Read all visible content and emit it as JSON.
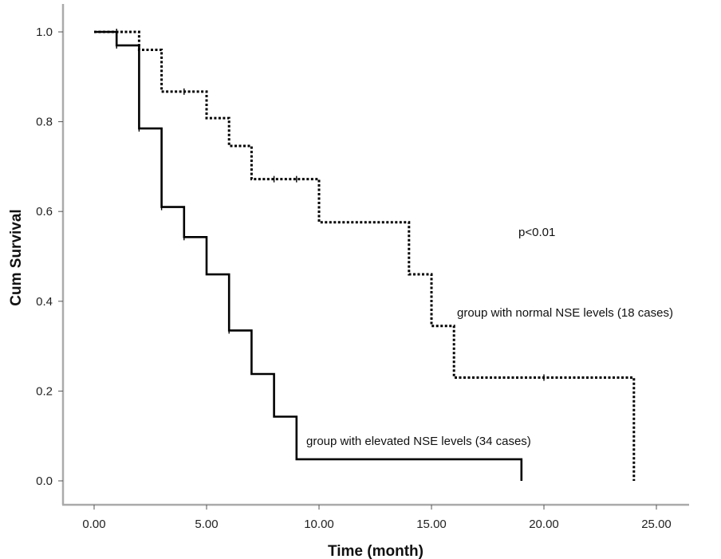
{
  "chart_data": {
    "type": "line",
    "subtype": "kaplan-meier-step",
    "title": "",
    "xlabel": "Time (month)",
    "ylabel": "Cum Survival",
    "xlim": [
      0,
      25
    ],
    "ylim": [
      0,
      1
    ],
    "x_ticks": [
      "0.00",
      "5.00",
      "10.00",
      "15.00",
      "20.00",
      "25.00"
    ],
    "y_ticks": [
      "0.0",
      "0.2",
      "0.4",
      "0.6",
      "0.8",
      "1.0"
    ],
    "grid": false,
    "annotations": [
      {
        "text": "p<0.01",
        "x": 19.5,
        "y": 0.55
      },
      {
        "text": "group with normal NSE levels (18 cases)",
        "x": 16.1,
        "y": 0.37
      },
      {
        "text": "group with elevated NSE levels (34 cases)",
        "x": 9.5,
        "y": 0.085
      }
    ],
    "series": [
      {
        "style": "dotted",
        "color": "#000000",
        "steps": [
          [
            0,
            1.0
          ],
          [
            2,
            0.96
          ],
          [
            3,
            0.867
          ],
          [
            5,
            0.808
          ],
          [
            6,
            0.746
          ],
          [
            7,
            0.672
          ],
          [
            10,
            0.576
          ],
          [
            14,
            0.46
          ],
          [
            15,
            0.345
          ],
          [
            16,
            0.23
          ],
          [
            24,
            0.0
          ]
        ],
        "censored": [
          [
            1,
            1.0
          ],
          [
            2,
            0.96
          ],
          [
            4,
            0.867
          ],
          [
            8,
            0.672
          ],
          [
            9,
            0.672
          ],
          [
            20,
            0.23
          ]
        ]
      },
      {
        "style": "solid",
        "color": "#000000",
        "steps": [
          [
            0,
            1.0
          ],
          [
            1,
            0.97
          ],
          [
            2,
            0.785
          ],
          [
            3,
            0.61
          ],
          [
            4,
            0.543
          ],
          [
            5,
            0.46
          ],
          [
            6,
            0.335
          ],
          [
            7,
            0.238
          ],
          [
            8,
            0.143
          ],
          [
            9,
            0.048
          ],
          [
            19,
            0.0
          ]
        ],
        "censored": [
          [
            1,
            0.97
          ],
          [
            2,
            0.785
          ],
          [
            3,
            0.61
          ],
          [
            4,
            0.543
          ],
          [
            6,
            0.335
          ]
        ]
      }
    ]
  }
}
